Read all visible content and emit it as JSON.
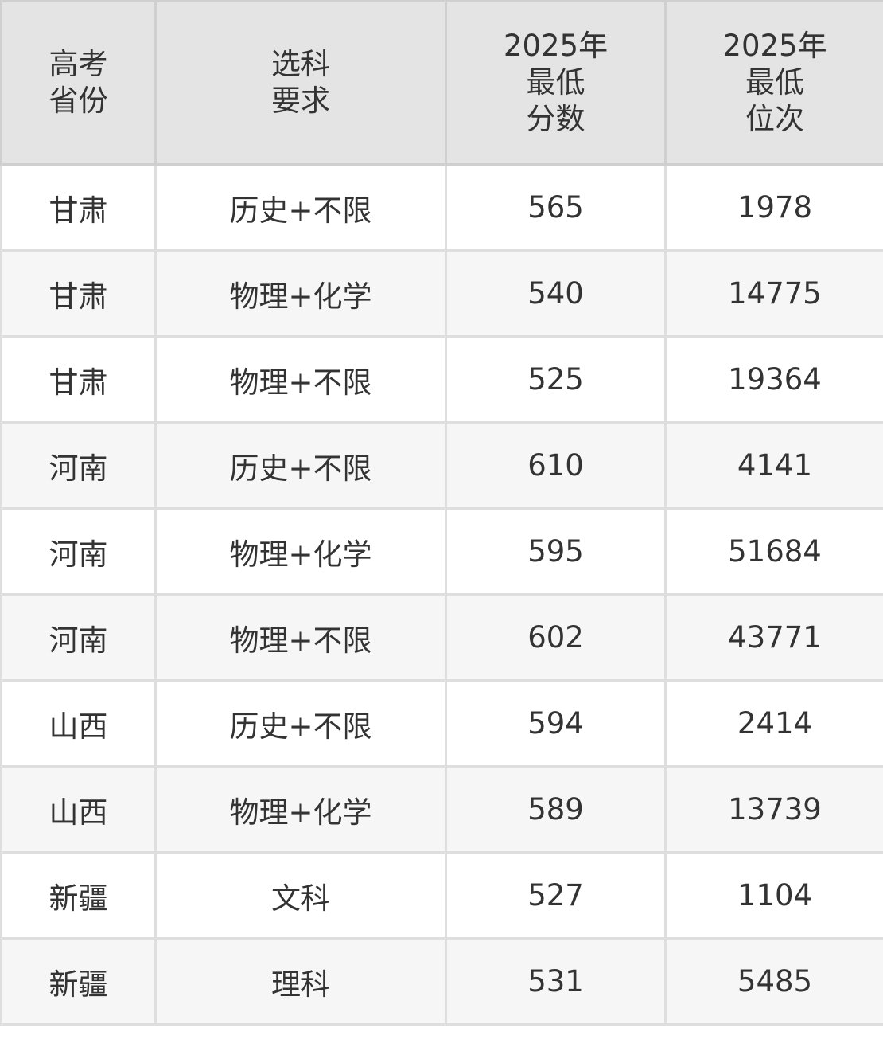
{
  "table": {
    "headers": [
      "高考\n省份",
      "选科\n要求",
      "2025年\n最低\n分数",
      "2025年\n最低\n位次"
    ],
    "rows": [
      [
        "甘肃",
        "历史+不限",
        "565",
        "1978"
      ],
      [
        "甘肃",
        "物理+化学",
        "540",
        "14775"
      ],
      [
        "甘肃",
        "物理+不限",
        "525",
        "19364"
      ],
      [
        "河南",
        "历史+不限",
        "610",
        "4141"
      ],
      [
        "河南",
        "物理+化学",
        "595",
        "51684"
      ],
      [
        "河南",
        "物理+不限",
        "602",
        "43771"
      ],
      [
        "山西",
        "历史+不限",
        "594",
        "2414"
      ],
      [
        "山西",
        "物理+化学",
        "589",
        "13739"
      ],
      [
        "新疆",
        "文科",
        "527",
        "1104"
      ],
      [
        "新疆",
        "理科",
        "531",
        "5485"
      ]
    ]
  },
  "colors": {
    "header_bg": "#e4e4e4",
    "alt_row_bg": "#f6f6f6",
    "border": "#dedede",
    "text": "#333333"
  }
}
